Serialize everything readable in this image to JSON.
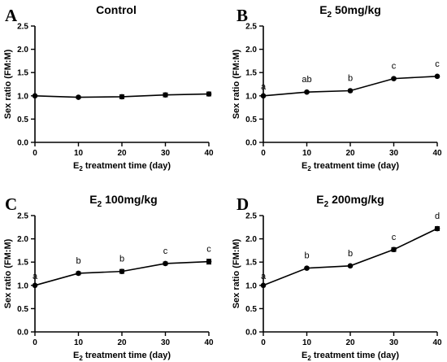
{
  "chart_data": [
    {
      "type": "line",
      "panel": "A",
      "title": "Control",
      "title_sub": "",
      "title_rest": "",
      "xlabel_pre": "E",
      "xlabel_sub": "2",
      "xlabel_post": " treatment time (day)",
      "ylabel": "Sex ratio (FM:M)",
      "xlim": [
        0,
        40
      ],
      "ylim": [
        0,
        2.5
      ],
      "xticks": [
        "0",
        "10",
        "20",
        "30",
        "40"
      ],
      "yticks": [
        "0.0",
        "0.5",
        "1.0",
        "1.5",
        "2.0",
        "2.5"
      ],
      "x": [
        0,
        10,
        20,
        30,
        40
      ],
      "y": [
        1.0,
        0.97,
        0.98,
        1.02,
        1.04
      ],
      "err": [
        0,
        0.02,
        0.04,
        0.04,
        0.04
      ],
      "labels": [
        "",
        "",
        "",
        "",
        ""
      ]
    },
    {
      "type": "line",
      "panel": "B",
      "title": "E",
      "title_sub": "2",
      "title_rest": " 50mg/kg",
      "xlabel_pre": "E",
      "xlabel_sub": "2",
      "xlabel_post": " treatment time (day)",
      "ylabel": "Sex ratio (FM:M)",
      "xlim": [
        0,
        40
      ],
      "ylim": [
        0,
        2.5
      ],
      "xticks": [
        "0",
        "10",
        "20",
        "30",
        "40"
      ],
      "yticks": [
        "0.0",
        "0.5",
        "1.0",
        "1.5",
        "2.0",
        "2.5"
      ],
      "x": [
        0,
        10,
        20,
        30,
        40
      ],
      "y": [
        1.0,
        1.08,
        1.11,
        1.37,
        1.42
      ],
      "err": [
        0,
        0.02,
        0.02,
        0.02,
        0.02
      ],
      "labels": [
        "a",
        "ab",
        "b",
        "c",
        "c"
      ]
    },
    {
      "type": "line",
      "panel": "C",
      "title": "E",
      "title_sub": "2",
      "title_rest": " 100mg/kg",
      "xlabel_pre": "E",
      "xlabel_sub": "2",
      "xlabel_post": " treatment time (day)",
      "ylabel": "Sex ratio (FM:M)",
      "xlim": [
        0,
        40
      ],
      "ylim": [
        0,
        2.5
      ],
      "xticks": [
        "0",
        "10",
        "20",
        "30",
        "40"
      ],
      "yticks": [
        "0.0",
        "0.5",
        "1.0",
        "1.5",
        "2.0",
        "2.5"
      ],
      "x": [
        0,
        10,
        20,
        30,
        40
      ],
      "y": [
        1.0,
        1.26,
        1.3,
        1.47,
        1.51
      ],
      "err": [
        0,
        0.03,
        0.04,
        0.03,
        0.05
      ],
      "labels": [
        "a",
        "b",
        "b",
        "c",
        "c"
      ]
    },
    {
      "type": "line",
      "panel": "D",
      "title": "E",
      "title_sub": "2",
      "title_rest": " 200mg/kg",
      "xlabel_pre": "E",
      "xlabel_sub": "2",
      "xlabel_post": " treatment time (day)",
      "ylabel": "Sex ratio (FM:M)",
      "xlim": [
        0,
        40
      ],
      "ylim": [
        0,
        2.5
      ],
      "xticks": [
        "0",
        "10",
        "20",
        "30",
        "40"
      ],
      "yticks": [
        "0.0",
        "0.5",
        "1.0",
        "1.5",
        "2.0",
        "2.5"
      ],
      "x": [
        0,
        10,
        20,
        30,
        40
      ],
      "y": [
        1.0,
        1.37,
        1.42,
        1.77,
        2.22
      ],
      "err": [
        0,
        0.02,
        0.02,
        0.04,
        0.04
      ],
      "labels": [
        "a",
        "b",
        "b",
        "c",
        "d"
      ]
    }
  ]
}
